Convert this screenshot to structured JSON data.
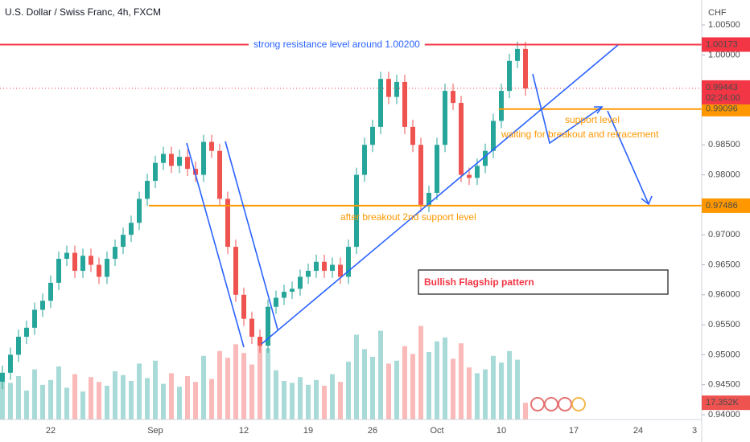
{
  "chart_data": {
    "type": "candlestick",
    "title": "U.S. Dollar / Swiss Franc, 4h, FXCM",
    "currency": "CHF",
    "categories": [
      null,
      null,
      null,
      null,
      null,
      null,
      "22",
      null,
      null,
      null,
      null,
      null,
      null,
      null,
      null,
      null,
      null,
      null,
      null,
      "Sep",
      null,
      null,
      null,
      null,
      null,
      null,
      null,
      null,
      null,
      null,
      "12",
      null,
      null,
      null,
      null,
      null,
      null,
      null,
      "19",
      null,
      null,
      null,
      null,
      null,
      null,
      null,
      "26",
      null,
      null,
      null,
      null,
      null,
      null,
      null,
      "Oct",
      null,
      null,
      null,
      null,
      null,
      null,
      null,
      "10",
      null,
      null,
      null,
      null,
      null,
      null,
      null,
      null,
      "17",
      null,
      null,
      null,
      null,
      null,
      null,
      null,
      "24",
      null,
      null,
      null,
      null,
      null,
      null,
      "3"
    ],
    "open": [
      0.9455,
      0.947,
      0.95,
      0.953,
      0.9545,
      0.9575,
      0.959,
      0.962,
      0.966,
      0.967,
      0.964,
      0.9665,
      0.965,
      0.963,
      0.966,
      0.968,
      0.97,
      0.972,
      0.976,
      0.979,
      0.982,
      0.9835,
      0.9815,
      0.983,
      0.981,
      0.98,
      0.9855,
      0.984,
      0.976,
      0.968,
      0.96,
      0.956,
      0.953,
      0.9515,
      0.958,
      0.9595,
      0.9605,
      0.961,
      0.963,
      0.964,
      0.9655,
      0.964,
      0.965,
      0.963,
      0.968,
      0.98,
      0.985,
      0.988,
      0.996,
      0.993,
      0.9955,
      0.988,
      0.985,
      0.975,
      0.977,
      0.985,
      0.994,
      0.992,
      0.98,
      0.9795,
      0.9815,
      0.984,
      0.989,
      0.994,
      0.999,
      1.001,
      null,
      null,
      null,
      null,
      null,
      null,
      null,
      null,
      null,
      null,
      null,
      null,
      null,
      null,
      null,
      null,
      null,
      null,
      null,
      null,
      null
    ],
    "high": [
      0.9482,
      0.9512,
      0.9542,
      0.9557,
      0.9587,
      0.9602,
      0.9632,
      0.9672,
      0.9682,
      0.9682,
      0.9677,
      0.9677,
      0.9662,
      0.9672,
      0.9692,
      0.9712,
      0.9732,
      0.9772,
      0.9802,
      0.9832,
      0.9847,
      0.9847,
      0.9842,
      0.9842,
      0.9822,
      0.9867,
      0.9867,
      0.9852,
      0.9772,
      0.9692,
      0.9612,
      0.9572,
      0.9542,
      0.9592,
      0.9607,
      0.9617,
      0.9622,
      0.9642,
      0.9652,
      0.9667,
      0.9667,
      0.9662,
      0.9662,
      0.9692,
      0.9812,
      0.9862,
      0.9892,
      0.9972,
      0.9972,
      0.9967,
      0.9967,
      0.9892,
      0.9862,
      0.9782,
      0.9862,
      0.9952,
      0.9952,
      0.9932,
      0.9812,
      0.9827,
      0.9852,
      0.9902,
      0.9952,
      1.0002,
      1.0022,
      1.0022,
      null,
      null,
      null,
      null,
      null,
      null,
      null,
      null,
      null,
      null,
      null,
      null,
      null,
      null,
      null,
      null,
      null,
      null,
      null,
      null,
      null
    ],
    "low": [
      0.9443,
      0.9458,
      0.9488,
      0.9518,
      0.9533,
      0.9563,
      0.9578,
      0.9608,
      0.9648,
      0.9628,
      0.9628,
      0.9638,
      0.9618,
      0.9618,
      0.9648,
      0.9668,
      0.9688,
      0.9708,
      0.9748,
      0.9778,
      0.9808,
      0.9803,
      0.9803,
      0.9798,
      0.9788,
      0.9788,
      0.9828,
      0.9748,
      0.9668,
      0.9588,
      0.9548,
      0.9518,
      0.9503,
      0.9503,
      0.9568,
      0.9583,
      0.9593,
      0.9598,
      0.9618,
      0.9628,
      0.9628,
      0.9628,
      0.9618,
      0.9618,
      0.9668,
      0.9788,
      0.9838,
      0.9868,
      0.9918,
      0.9918,
      0.9868,
      0.9838,
      0.9738,
      0.9738,
      0.9758,
      0.9838,
      0.9908,
      0.9788,
      0.9783,
      0.9783,
      0.9803,
      0.9828,
      0.9878,
      0.9928,
      0.9978,
      0.9932,
      null,
      null,
      null,
      null,
      null,
      null,
      null,
      null,
      null,
      null,
      null,
      null,
      null,
      null,
      null,
      null,
      null,
      null,
      null,
      null,
      null
    ],
    "close": [
      0.947,
      0.95,
      0.953,
      0.9545,
      0.9575,
      0.959,
      0.962,
      0.966,
      0.967,
      0.964,
      0.9665,
      0.965,
      0.963,
      0.966,
      0.968,
      0.97,
      0.972,
      0.976,
      0.979,
      0.982,
      0.9835,
      0.9815,
      0.983,
      0.981,
      0.98,
      0.9855,
      0.984,
      0.976,
      0.968,
      0.96,
      0.956,
      0.953,
      0.9515,
      0.958,
      0.9595,
      0.9605,
      0.961,
      0.963,
      0.964,
      0.9655,
      0.964,
      0.965,
      0.963,
      0.968,
      0.98,
      0.985,
      0.988,
      0.996,
      0.993,
      0.9955,
      0.988,
      0.985,
      0.975,
      0.977,
      0.985,
      0.994,
      0.992,
      0.98,
      0.9795,
      0.9815,
      0.984,
      0.989,
      0.994,
      0.999,
      1.001,
      0.9944,
      null,
      null,
      null,
      null,
      null,
      null,
      null,
      null,
      null,
      null,
      null,
      null,
      null,
      null,
      null,
      null,
      null,
      null,
      null,
      null,
      null
    ],
    "volume": [
      42000,
      38000,
      45000,
      30000,
      52000,
      36000,
      41000,
      55000,
      33000,
      47000,
      29000,
      44000,
      39000,
      35000,
      50000,
      46000,
      40000,
      58000,
      43000,
      61000,
      37000,
      48000,
      34000,
      45000,
      39000,
      66000,
      42000,
      71000,
      64000,
      78000,
      69000,
      57000,
      82000,
      74000,
      51000,
      40000,
      38000,
      44000,
      36000,
      41000,
      35000,
      47000,
      39000,
      60000,
      88000,
      73000,
      65000,
      92000,
      58000,
      61000,
      76000,
      68000,
      97000,
      70000,
      81000,
      85000,
      63000,
      79000,
      54000,
      48000,
      52000,
      66000,
      59000,
      71000,
      62000,
      17352,
      null,
      null,
      null,
      null,
      null,
      null,
      null,
      null,
      null,
      null,
      null,
      null,
      null,
      null,
      null,
      null,
      null,
      null,
      null,
      null,
      null
    ],
    "volume_label": "17.352K",
    "vlim": [
      0,
      100000
    ],
    "up_color": "#26a69a",
    "down_color": "#ef5350",
    "ylim": [
      0.9392,
      1.00916
    ],
    "yticks": [
      {
        "value": 1.005,
        "label": "1.00500"
      },
      {
        "value": 1.0,
        "label": "1.00000"
      },
      {
        "value": 0.985,
        "label": "0.98500"
      },
      {
        "value": 0.98,
        "label": "0.98000"
      },
      {
        "value": 0.97,
        "label": "0.97000"
      },
      {
        "value": 0.965,
        "label": "0.96500"
      },
      {
        "value": 0.96,
        "label": "0.96000"
      },
      {
        "value": 0.955,
        "label": "0.95500"
      },
      {
        "value": 0.95,
        "label": "0.95000"
      },
      {
        "value": 0.945,
        "label": "0.94500"
      },
      {
        "value": 0.94,
        "label": "0.94000"
      }
    ],
    "grid": false,
    "levels": [
      {
        "value": 1.00173,
        "color": "#f23645"
      },
      {
        "value": 0.99096,
        "color": "#ff9800"
      },
      {
        "value": 0.97486,
        "color": "#ff9800"
      }
    ],
    "last_price": {
      "value": 0.99443,
      "countdown": "02:24:00",
      "color": "#f23645"
    },
    "annotations": [
      {
        "text": "strong resistance level around 1.00200",
        "color": "#2962ff"
      },
      {
        "text": "support level",
        "color": "#ff9800"
      },
      {
        "text": "waiting for breakout and retracement",
        "color": "#ff9800"
      },
      {
        "text": "after breakout 2nd support level",
        "color": "#ff9800"
      },
      {
        "text": "Bullish Flagship pattern",
        "color": "#f23645"
      }
    ]
  }
}
